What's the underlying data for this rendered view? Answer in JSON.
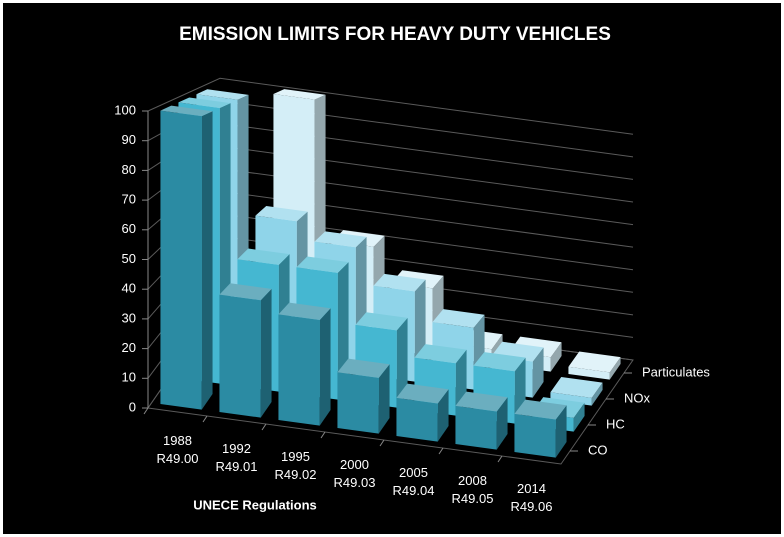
{
  "chart_data": {
    "type": "bar3d",
    "title": "EMISSION LIMITS FOR HEAVY DUTY VEHICLES",
    "x_label": "UNECE Regulations",
    "categories": [
      "1988 R49.00",
      "1992 R49.01",
      "1995 R49.02",
      "2000 R49.03",
      "2005 R49.04",
      "2008 R49.05",
      "2014 R49.06"
    ],
    "series": [
      {
        "name": "CO",
        "color": "#2b8ba3",
        "values": [
          100,
          40,
          36,
          19,
          13,
          13,
          13
        ]
      },
      {
        "name": "HC",
        "color": "#45b7d1",
        "values": [
          100,
          46,
          46,
          28,
          19,
          19,
          5
        ]
      },
      {
        "name": "NOx",
        "color": "#8fd4e9",
        "values": [
          100,
          56,
          49,
          35,
          24,
          14,
          3
        ]
      },
      {
        "name": "Particulates",
        "color": "#d4eef7",
        "values": [
          null,
          100,
          42,
          28,
          6,
          6,
          3
        ]
      }
    ],
    "ylim": [
      0,
      100
    ],
    "yticks": [
      0,
      10,
      20,
      30,
      40,
      50,
      60,
      70,
      80,
      90,
      100
    ],
    "grid": true
  }
}
